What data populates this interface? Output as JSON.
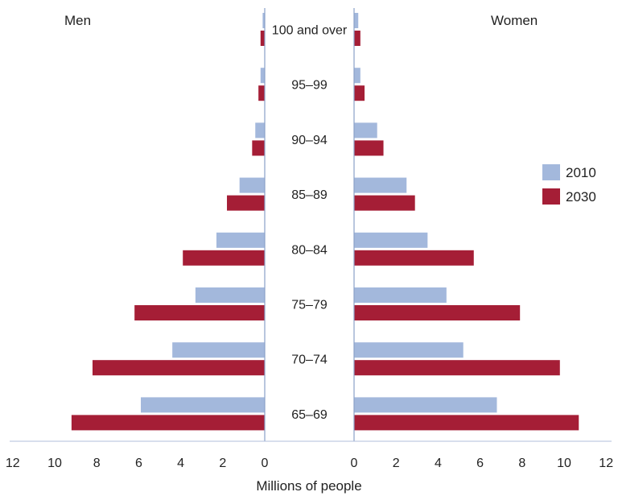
{
  "chart_data": {
    "type": "bar",
    "left_group": "Men",
    "right_group": "Women",
    "xlabel": "Millions of people",
    "xlim": [
      0,
      12
    ],
    "x_ticks": [
      12,
      10,
      8,
      6,
      4,
      2,
      0
    ],
    "x_ticks_right": [
      0,
      2,
      4,
      6,
      8,
      10,
      12
    ],
    "categories": [
      "100 and over",
      "95–99",
      "90–94",
      "85–89",
      "80–84",
      "75–79",
      "70–74",
      "65–69"
    ],
    "colors": {
      "2010": "#a3b8dc",
      "2030": "#a51e36"
    },
    "legend": {
      "position": "right",
      "entries": [
        "2010",
        "2030"
      ]
    },
    "series": [
      {
        "name": "2010",
        "men": [
          0.1,
          0.2,
          0.45,
          1.2,
          2.3,
          3.3,
          4.4,
          5.9
        ],
        "women": [
          0.2,
          0.3,
          1.1,
          2.5,
          3.5,
          4.4,
          5.2,
          6.8
        ]
      },
      {
        "name": "2030",
        "men": [
          0.2,
          0.3,
          0.6,
          1.8,
          3.9,
          6.2,
          8.2,
          9.2
        ],
        "women": [
          0.3,
          0.5,
          1.4,
          2.9,
          5.7,
          7.9,
          9.8,
          10.7
        ]
      }
    ]
  }
}
